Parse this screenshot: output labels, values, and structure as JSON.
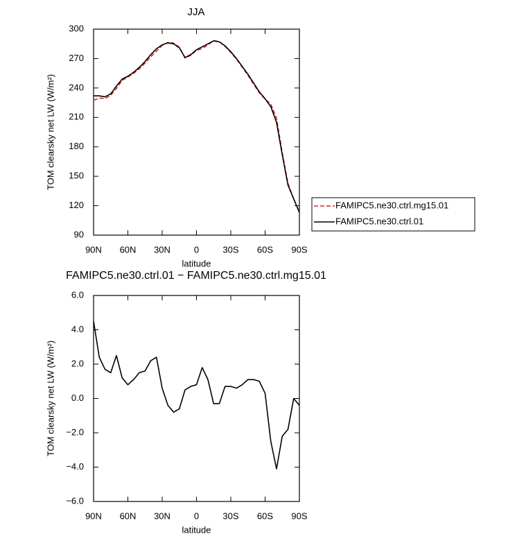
{
  "chart_data": [
    {
      "type": "line",
      "title": "JJA",
      "xlabel": "latitude",
      "ylabel": "TOM clearsky net LW (W/m²)",
      "x": [
        90,
        85,
        80,
        75,
        70,
        65,
        60,
        55,
        50,
        45,
        40,
        35,
        30,
        25,
        20,
        15,
        10,
        5,
        0,
        -5,
        -10,
        -15,
        -20,
        -25,
        -30,
        -35,
        -40,
        -45,
        -50,
        -55,
        -60,
        -65,
        -70,
        -75,
        -80,
        -85,
        -90
      ],
      "xlim": [
        90,
        -90
      ],
      "xticks": [
        {
          "value": 90,
          "label": "90N"
        },
        {
          "value": 60,
          "label": "60N"
        },
        {
          "value": 30,
          "label": "30N"
        },
        0,
        {
          "value": -30,
          "label": "30S"
        },
        {
          "value": -60,
          "label": "60S"
        },
        {
          "value": -90,
          "label": "90S"
        }
      ],
      "ylim": [
        90,
        300
      ],
      "yticks": [
        90,
        120,
        150,
        180,
        210,
        240,
        270,
        300
      ],
      "legend": "right",
      "series": [
        {
          "name": "FAMIPC5.ne30.ctrl.mg15.01",
          "color": "#e0201b",
          "line_style": "dashed",
          "values": [
            227.5,
            229.6,
            229.3,
            232.5,
            239.5,
            247.8,
            251.2,
            254.9,
            259.5,
            265.4,
            271.8,
            277.6,
            283.4,
            286.4,
            285.8,
            281.6,
            270.5,
            273.3,
            278.2,
            280.2,
            283.9,
            288.3,
            287.3,
            282.3,
            276.3,
            269.4,
            261.2,
            252.9,
            243.9,
            235,
            228.7,
            223.5,
            209.1,
            174.2,
            142.8,
            127,
            113.4
          ]
        },
        {
          "name": "FAMIPC5.ne30.ctrl.01",
          "color": "#000000",
          "line_style": "solid",
          "values": [
            232,
            232,
            231,
            234,
            242,
            249,
            252,
            256,
            261,
            267,
            274,
            280,
            284,
            286,
            285,
            281,
            271,
            274,
            279,
            282,
            285,
            288,
            287,
            283,
            277,
            270,
            262,
            254,
            245,
            236,
            229,
            221,
            205,
            172,
            141,
            127,
            113
          ]
        }
      ]
    },
    {
      "type": "line",
      "title": "FAMIPC5.ne30.ctrl.01 − FAMIPC5.ne30.ctrl.mg15.01",
      "xlabel": "latitude",
      "ylabel": "TOM clearsky net LW (W/m²)",
      "x": [
        90,
        85,
        80,
        75,
        70,
        65,
        60,
        55,
        50,
        45,
        40,
        35,
        30,
        25,
        20,
        15,
        10,
        5,
        0,
        -5,
        -10,
        -15,
        -20,
        -25,
        -30,
        -35,
        -40,
        -45,
        -50,
        -55,
        -60,
        -65,
        -70,
        -75,
        -80,
        -85,
        -90
      ],
      "xlim": [
        90,
        -90
      ],
      "xticks": [
        {
          "value": 90,
          "label": "90N"
        },
        {
          "value": 60,
          "label": "60N"
        },
        {
          "value": 30,
          "label": "30N"
        },
        0,
        {
          "value": -30,
          "label": "30S"
        },
        {
          "value": -60,
          "label": "60S"
        },
        {
          "value": -90,
          "label": "90S"
        }
      ],
      "ylim": [
        -6,
        6
      ],
      "yticks": [
        {
          "value": -6,
          "label": "−6.0"
        },
        {
          "value": -4,
          "label": "−4.0"
        },
        {
          "value": -2,
          "label": "−2.0"
        },
        {
          "value": 0,
          "label": "0.0"
        },
        {
          "value": 2,
          "label": "2.0"
        },
        {
          "value": 4,
          "label": "4.0"
        },
        {
          "value": 6,
          "label": "6.0"
        }
      ],
      "series": [
        {
          "color": "#000000",
          "line_style": "solid",
          "values": [
            4.5,
            2.4,
            1.7,
            1.5,
            2.5,
            1.2,
            0.8,
            1.1,
            1.5,
            1.6,
            2.2,
            2.4,
            0.6,
            -0.4,
            -0.8,
            -0.6,
            0.5,
            0.7,
            0.8,
            1.8,
            1.1,
            -0.3,
            -0.3,
            0.7,
            0.7,
            0.6,
            0.8,
            1.1,
            1.1,
            1.0,
            0.3,
            -2.5,
            -4.1,
            -2.2,
            -1.8,
            0.0,
            -0.4
          ]
        }
      ]
    }
  ]
}
